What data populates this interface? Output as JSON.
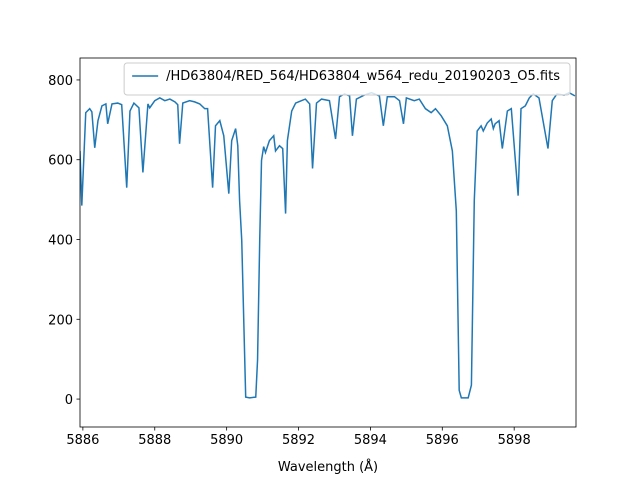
{
  "chart_data": {
    "type": "line",
    "xlabel": "Wavelength (Å)",
    "xlim": [
      5885.92,
      5899.72
    ],
    "ylim": [
      -70,
      855
    ],
    "xticks": [
      5886,
      5888,
      5890,
      5892,
      5894,
      5896,
      5898
    ],
    "yticks": [
      0,
      200,
      400,
      600,
      800
    ],
    "grid": false,
    "legend": "upper right",
    "x": [
      5885.92,
      5885.97,
      5886.08,
      5886.19,
      5886.25,
      5886.33,
      5886.42,
      5886.53,
      5886.64,
      5886.69,
      5886.81,
      5886.97,
      5887.08,
      5887.22,
      5887.31,
      5887.42,
      5887.56,
      5887.67,
      5887.81,
      5887.86,
      5888.0,
      5888.14,
      5888.28,
      5888.42,
      5888.56,
      5888.64,
      5888.69,
      5888.78,
      5888.97,
      5889.11,
      5889.25,
      5889.39,
      5889.47,
      5889.61,
      5889.69,
      5889.81,
      5889.92,
      5890.06,
      5890.14,
      5890.25,
      5890.31,
      5890.36,
      5890.42,
      5890.53,
      5890.64,
      5890.81,
      5890.86,
      5890.92,
      5890.97,
      5891.03,
      5891.08,
      5891.19,
      5891.31,
      5891.36,
      5891.47,
      5891.56,
      5891.64,
      5891.69,
      5891.81,
      5891.92,
      5892.08,
      5892.19,
      5892.31,
      5892.39,
      5892.5,
      5892.64,
      5892.86,
      5893.03,
      5893.14,
      5893.28,
      5893.42,
      5893.5,
      5893.61,
      5893.83,
      5894.03,
      5894.25,
      5894.36,
      5894.47,
      5894.67,
      5894.81,
      5894.92,
      5895.0,
      5895.22,
      5895.36,
      5895.53,
      5895.69,
      5895.81,
      5895.97,
      5896.14,
      5896.28,
      5896.39,
      5896.47,
      5896.53,
      5896.72,
      5896.81,
      5896.89,
      5896.97,
      5897.08,
      5897.14,
      5897.25,
      5897.36,
      5897.42,
      5897.47,
      5897.58,
      5897.67,
      5897.81,
      5897.92,
      5898.11,
      5898.19,
      5898.31,
      5898.42,
      5898.53,
      5898.69,
      5898.94,
      5899.06,
      5899.19,
      5899.39,
      5899.53,
      5899.69
    ],
    "series": [
      {
        "name": "/HD63804/RED_564/HD63804_w564_redu_20190203_O5.fits",
        "color": "#1f77b4",
        "values": [
          622,
          485,
          718,
          728,
          720,
          630,
          698,
          735,
          740,
          690,
          740,
          742,
          738,
          530,
          722,
          742,
          730,
          568,
          740,
          730,
          748,
          755,
          748,
          752,
          745,
          738,
          640,
          742,
          748,
          745,
          740,
          728,
          728,
          530,
          685,
          698,
          660,
          515,
          648,
          678,
          635,
          498,
          398,
          5,
          3,
          5,
          98,
          398,
          598,
          633,
          618,
          648,
          660,
          622,
          635,
          628,
          465,
          648,
          722,
          742,
          748,
          752,
          740,
          578,
          742,
          752,
          748,
          652,
          758,
          765,
          760,
          660,
          752,
          762,
          768,
          760,
          685,
          758,
          758,
          748,
          690,
          755,
          748,
          752,
          728,
          718,
          728,
          710,
          685,
          622,
          472,
          22,
          3,
          3,
          35,
          498,
          672,
          685,
          672,
          692,
          702,
          678,
          690,
          698,
          628,
          722,
          728,
          510,
          728,
          735,
          755,
          765,
          755,
          628,
          748,
          765,
          762,
          768,
          760
        ]
      }
    ]
  }
}
